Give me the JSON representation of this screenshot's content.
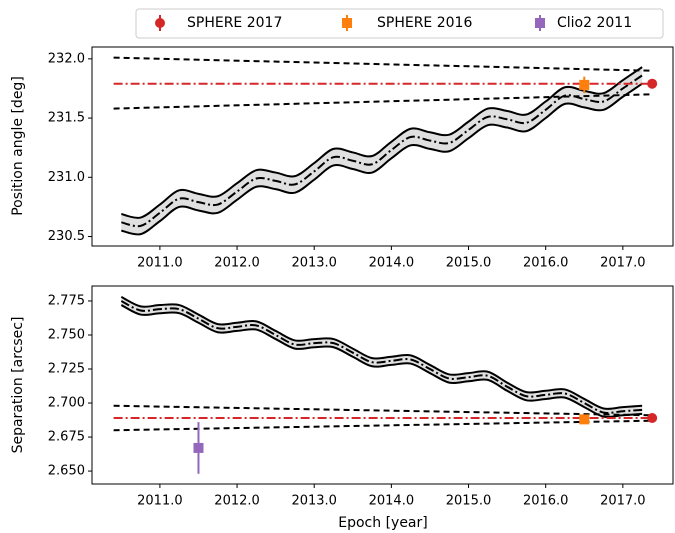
{
  "legend": [
    {
      "name": "SPHERE 2017",
      "color": "#d62728",
      "marker": "o"
    },
    {
      "name": "SPHERE 2016",
      "color": "#ff7f0e",
      "marker": "s"
    },
    {
      "name": "Clio2 2011",
      "color": "#9467bd",
      "marker": "s"
    }
  ],
  "chart_data": [
    {
      "type": "line",
      "ylabel": "Position angle [deg]",
      "xlim": [
        2010.12,
        2017.65
      ],
      "ylim": [
        230.42,
        232.1
      ],
      "xticks": [
        {
          "value": 2011,
          "label": "2011.0"
        },
        {
          "value": 2012,
          "label": "2012.0"
        },
        {
          "value": 2013,
          "label": "2013.0"
        },
        {
          "value": 2014,
          "label": "2014.0"
        },
        {
          "value": 2015,
          "label": "2015.0"
        },
        {
          "value": 2016,
          "label": "2016.0"
        },
        {
          "value": 2017,
          "label": "2017.0"
        }
      ],
      "yticks": [
        230.5,
        {
          "value": 231,
          "label": "231.0"
        },
        231.5,
        {
          "value": 232,
          "label": "232.0"
        }
      ],
      "band_color": "#e0e0e0",
      "x": [
        2010.5,
        2010.75,
        2011,
        2011.25,
        2011.5,
        2011.75,
        2012,
        2012.25,
        2012.5,
        2012.75,
        2013,
        2013.25,
        2013.5,
        2013.75,
        2014,
        2014.25,
        2014.5,
        2014.75,
        2015,
        2015.25,
        2015.5,
        2015.75,
        2016,
        2016.25,
        2016.5,
        2016.75,
        2017,
        2017.25
      ],
      "series": [
        {
          "style": "dashdot",
          "color": "#000000",
          "values": [
            230.62,
            230.59,
            230.7,
            230.82,
            230.79,
            230.77,
            230.88,
            230.99,
            230.97,
            230.94,
            231.05,
            231.17,
            231.14,
            231.11,
            231.23,
            231.34,
            231.31,
            231.29,
            231.4,
            231.51,
            231.49,
            231.46,
            231.57,
            231.69,
            231.66,
            231.64,
            231.75,
            231.86
          ]
        },
        {
          "style": "solid",
          "color": "#000000",
          "values": [
            230.69,
            230.66,
            230.77,
            230.89,
            230.86,
            230.84,
            230.95,
            231.06,
            231.04,
            231.01,
            231.12,
            231.24,
            231.21,
            231.18,
            231.3,
            231.41,
            231.38,
            231.36,
            231.47,
            231.58,
            231.56,
            231.53,
            231.64,
            231.76,
            231.73,
            231.71,
            231.82,
            231.93
          ]
        },
        {
          "style": "solid",
          "color": "#000000",
          "values": [
            230.55,
            230.52,
            230.63,
            230.75,
            230.72,
            230.7,
            230.81,
            230.92,
            230.9,
            230.87,
            230.98,
            231.1,
            231.07,
            231.04,
            231.16,
            231.27,
            231.24,
            231.22,
            231.33,
            231.44,
            231.42,
            231.39,
            231.5,
            231.62,
            231.59,
            231.57,
            231.68,
            231.79
          ]
        }
      ],
      "guides": [
        {
          "style": "dashed",
          "color": "#000000",
          "x": [
            2010.4,
            2017.35
          ],
          "values": [
            232.01,
            231.9
          ]
        },
        {
          "style": "dashed",
          "color": "#000000",
          "x": [
            2010.4,
            2017.35
          ],
          "values": [
            231.58,
            231.7
          ]
        },
        {
          "style": "dashdot",
          "color": "#d62728",
          "x": [
            2010.4,
            2017.35
          ],
          "values": [
            231.79,
            231.79
          ]
        }
      ],
      "points": [
        {
          "x": 2017.38,
          "y": 231.79,
          "yerr": 0.03
        },
        {
          "x": 2016.5,
          "y": 231.78,
          "yerr": 0.07
        },
        null
      ]
    },
    {
      "type": "line",
      "ylabel": "Separation [arcsec]",
      "xlabel": "Epoch [year]",
      "xlim": [
        2010.12,
        2017.65
      ],
      "ylim": [
        2.6405,
        2.786
      ],
      "xticks": [
        {
          "value": 2011,
          "label": "2011.0"
        },
        {
          "value": 2012,
          "label": "2012.0"
        },
        {
          "value": 2013,
          "label": "2013.0"
        },
        {
          "value": 2014,
          "label": "2014.0"
        },
        {
          "value": 2015,
          "label": "2015.0"
        },
        {
          "value": 2016,
          "label": "2016.0"
        },
        {
          "value": 2017,
          "label": "2017.0"
        }
      ],
      "yticks": [
        {
          "value": 2.65,
          "label": "2.650"
        },
        2.675,
        {
          "value": 2.7,
          "label": "2.700"
        },
        2.725,
        {
          "value": 2.75,
          "label": "2.750"
        },
        2.775
      ],
      "band_color": "#e0e0e0",
      "x": [
        2010.5,
        2010.75,
        2011,
        2011.25,
        2011.5,
        2011.75,
        2012,
        2012.25,
        2012.5,
        2012.75,
        2013,
        2013.25,
        2013.5,
        2013.75,
        2014,
        2014.25,
        2014.5,
        2014.75,
        2015,
        2015.25,
        2015.5,
        2015.75,
        2016,
        2016.25,
        2016.5,
        2016.75,
        2017,
        2017.25
      ],
      "series": [
        {
          "style": "dashdot",
          "color": "#000000",
          "values": [
            2.775,
            2.768,
            2.769,
            2.769,
            2.762,
            2.755,
            2.756,
            2.757,
            2.75,
            2.743,
            2.744,
            2.744,
            2.737,
            2.73,
            2.731,
            2.732,
            2.725,
            2.718,
            2.719,
            2.72,
            2.712,
            2.705,
            2.706,
            2.707,
            2.7,
            2.693,
            2.694,
            2.695
          ]
        },
        {
          "style": "solid",
          "color": "#000000",
          "values": [
            2.778,
            2.771,
            2.772,
            2.772,
            2.765,
            2.758,
            2.759,
            2.76,
            2.753,
            2.746,
            2.747,
            2.747,
            2.74,
            2.733,
            2.734,
            2.735,
            2.728,
            2.721,
            2.722,
            2.723,
            2.715,
            2.708,
            2.709,
            2.71,
            2.703,
            2.696,
            2.697,
            2.698
          ]
        },
        {
          "style": "solid",
          "color": "#000000",
          "values": [
            2.772,
            2.765,
            2.766,
            2.766,
            2.759,
            2.752,
            2.753,
            2.754,
            2.747,
            2.74,
            2.741,
            2.741,
            2.734,
            2.727,
            2.728,
            2.729,
            2.722,
            2.715,
            2.716,
            2.717,
            2.709,
            2.702,
            2.703,
            2.704,
            2.697,
            2.69,
            2.691,
            2.692
          ]
        }
      ],
      "guides": [
        {
          "style": "dashed",
          "color": "#000000",
          "x": [
            2010.4,
            2017.35
          ],
          "values": [
            2.698,
            2.691
          ]
        },
        {
          "style": "dashed",
          "color": "#000000",
          "x": [
            2010.4,
            2017.35
          ],
          "values": [
            2.68,
            2.687
          ]
        },
        {
          "style": "dashdot",
          "color": "#d62728",
          "x": [
            2010.4,
            2017.35
          ],
          "values": [
            2.689,
            2.689
          ]
        }
      ],
      "points": [
        {
          "x": 2017.38,
          "y": 2.689,
          "yerr": 0.002
        },
        {
          "x": 2016.5,
          "y": 2.688,
          "yerr": 0.003
        },
        {
          "x": 2011.5,
          "y": 2.667,
          "yerr": 0.019
        }
      ]
    }
  ]
}
